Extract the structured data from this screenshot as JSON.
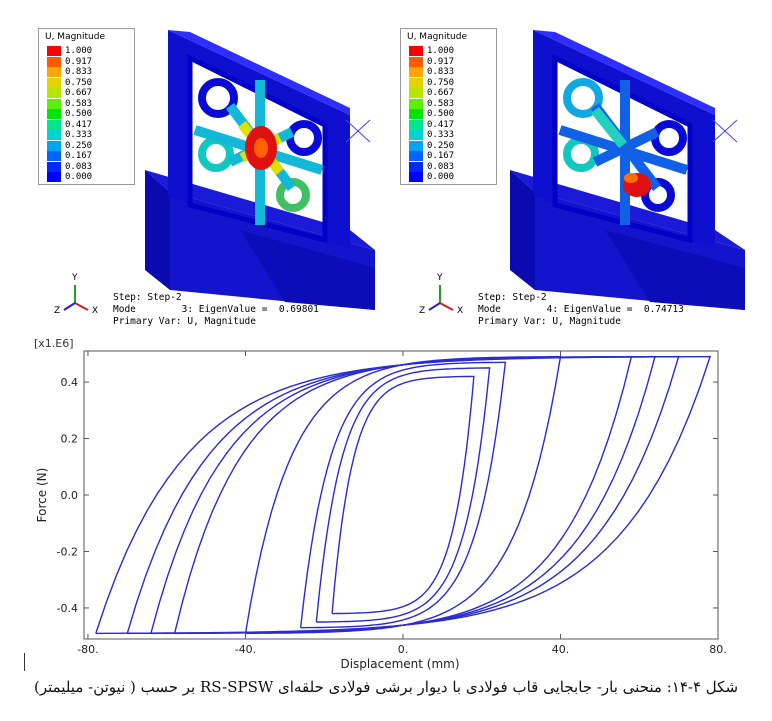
{
  "fem_panels": [
    {
      "legend_title": "U, Magnitude",
      "legend_values": [
        "1.000",
        "0.917",
        "0.833",
        "0.750",
        "0.667",
        "0.583",
        "0.500",
        "0.417",
        "0.333",
        "0.250",
        "0.167",
        "0.083",
        "0.000"
      ],
      "step_line": "Step: Step-2",
      "mode_line": "Mode        3: EigenValue =  0.69801",
      "var_line": "Primary Var: U, Magnitude",
      "axes": {
        "y": "Y",
        "z": "Z",
        "x": "X"
      }
    },
    {
      "legend_title": "U, Magnitude",
      "legend_values": [
        "1.000",
        "0.917",
        "0.833",
        "0.750",
        "0.667",
        "0.583",
        "0.500",
        "0.417",
        "0.333",
        "0.250",
        "0.167",
        "0.083",
        "0.000"
      ],
      "step_line": "Step: Step-2",
      "mode_line": "Mode        4: EigenValue =  0.74713",
      "var_line": "Primary Var: U, Magnitude",
      "axes": {
        "y": "Y",
        "z": "Z",
        "x": "X"
      }
    }
  ],
  "legend_colors": [
    "#ff0000",
    "#ff5a00",
    "#ffa500",
    "#e6d200",
    "#b4e600",
    "#5af000",
    "#00e600",
    "#00e68c",
    "#00d2d2",
    "#00a5f0",
    "#0064ff",
    "#0028ff",
    "#0000ff"
  ],
  "chart_data": {
    "type": "line",
    "title": "",
    "xlabel": "Displacement (mm)",
    "ylabel": "Force (N)",
    "multiplier": "[x1.E6]",
    "xlim": [
      -81,
      80
    ],
    "ylim": [
      -0.51,
      0.51
    ],
    "xticks": [
      "-80.",
      "-40.",
      "0.",
      "40.",
      "80."
    ],
    "yticks": [
      "0.4",
      "0.2",
      "0.0",
      "-0.2",
      "-0.4"
    ],
    "series_color": "#2a2ad6",
    "loops": [
      {
        "amp": 18,
        "peak": 0.42
      },
      {
        "amp": 22,
        "peak": 0.45
      },
      {
        "amp": 26,
        "peak": 0.47
      },
      {
        "amp": 40,
        "peak": 0.49
      },
      {
        "amp": 58,
        "peak": 0.49
      },
      {
        "amp": 64,
        "peak": 0.49
      },
      {
        "amp": 70,
        "peak": 0.49
      },
      {
        "amp": 78,
        "peak": 0.49
      }
    ]
  },
  "caption": "شکل ۴-۱۴: منحنی بار- جابجایی قاب فولادی با دیوار برشی فولادی حلقه‌ای  RS-SPSW بر حسب ( نیوتن- میلیمتر)"
}
